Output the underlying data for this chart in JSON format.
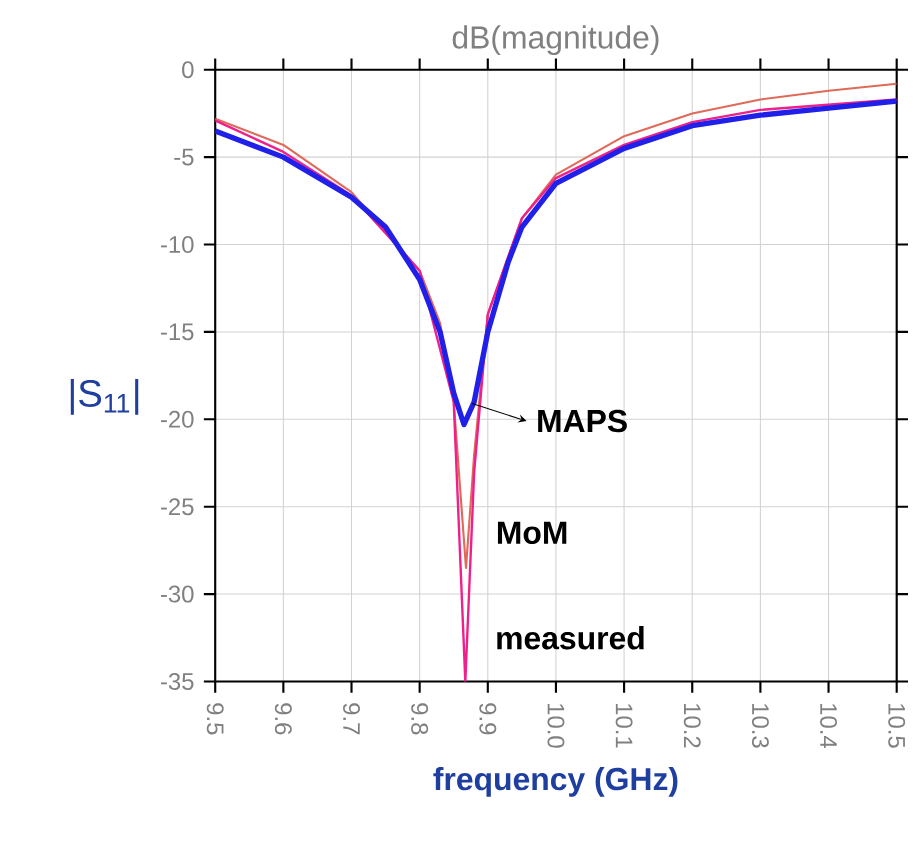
{
  "chart_data": {
    "type": "line",
    "title": "dB(magnitude)",
    "xlabel": "frequency (GHz)",
    "ylabel": "|S$_{11}$|",
    "xlim": [
      9.5,
      10.5
    ],
    "ylim": [
      -35,
      0
    ],
    "xticks": [
      {
        "value": 9.5,
        "label": "9.5"
      },
      {
        "value": 9.6,
        "label": "9.6"
      },
      {
        "value": 9.7,
        "label": "9.7"
      },
      {
        "value": 9.8,
        "label": "9.8"
      },
      {
        "value": 9.9,
        "label": "9.9"
      },
      {
        "value": 10.0,
        "label": "10.0"
      },
      {
        "value": 10.1,
        "label": "10.1"
      },
      {
        "value": 10.2,
        "label": "10.2"
      },
      {
        "value": 10.3,
        "label": "10.3"
      },
      {
        "value": 10.4,
        "label": "10.4"
      },
      {
        "value": 10.5,
        "label": "10.5"
      }
    ],
    "yticks": [
      0,
      -5,
      -10,
      -15,
      -20,
      -25,
      -30,
      -35
    ],
    "grid": true,
    "legend": false,
    "marker": "none",
    "line_style": "solid",
    "series": [
      {
        "name": "MoM",
        "color": "#e06a5a",
        "x": [
          9.5,
          9.6,
          9.7,
          9.8,
          9.83,
          9.85,
          9.868,
          9.88,
          9.9,
          9.95,
          10.0,
          10.1,
          10.2,
          10.3,
          10.4,
          10.5
        ],
        "values": [
          -2.8,
          -4.3,
          -7.0,
          -11.5,
          -14.5,
          -19,
          -28.5,
          -22,
          -14,
          -8.5,
          -6.0,
          -3.8,
          -2.5,
          -1.7,
          -1.2,
          -0.8
        ]
      },
      {
        "name": "measured",
        "color": "#f0208a",
        "x": [
          9.5,
          9.6,
          9.7,
          9.8,
          9.85,
          9.867,
          9.88,
          9.9,
          9.95,
          10.0,
          10.1,
          10.2,
          10.3,
          10.4,
          10.5
        ],
        "values": [
          -2.9,
          -4.7,
          -7.2,
          -11.5,
          -19,
          -35,
          -23,
          -14,
          -8.5,
          -6.2,
          -4.3,
          -3.0,
          -2.3,
          -2.0,
          -1.7
        ]
      },
      {
        "name": "MAPS",
        "color": "#2020e8",
        "x": [
          9.5,
          9.6,
          9.7,
          9.75,
          9.8,
          9.83,
          9.85,
          9.865,
          9.88,
          9.9,
          9.93,
          9.95,
          10.0,
          10.1,
          10.2,
          10.3,
          10.4,
          10.5
        ],
        "values": [
          -3.5,
          -5.0,
          -7.3,
          -9.0,
          -12,
          -15,
          -18.5,
          -20.3,
          -19,
          -15,
          -11,
          -9,
          -6.5,
          -4.5,
          -3.2,
          -2.6,
          -2.2,
          -1.8
        ]
      }
    ]
  }
}
